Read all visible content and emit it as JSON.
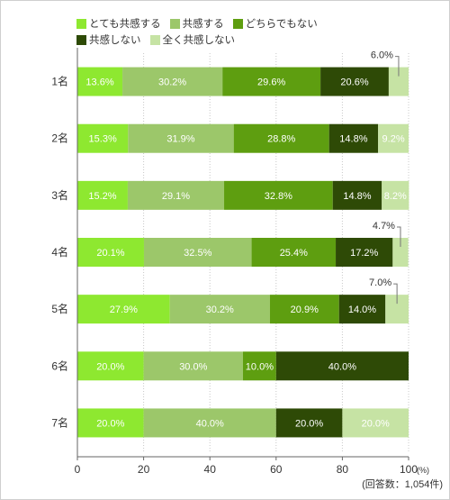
{
  "chart_data": {
    "type": "bar",
    "orientation": "horizontal",
    "stacked": true,
    "categories": [
      "1名",
      "2名",
      "3名",
      "4名",
      "5名",
      "6名",
      "7名"
    ],
    "series": [
      {
        "name": "とても共感する",
        "color": "#8ee830",
        "values": [
          13.6,
          15.3,
          15.2,
          20.1,
          27.9,
          20.0,
          20.0
        ],
        "labels": [
          "13.6%",
          "15.3%",
          "15.2%",
          "20.1%",
          "27.9%",
          "20.0%",
          "20.0%"
        ]
      },
      {
        "name": "共感する",
        "color": "#9cc76a",
        "values": [
          30.2,
          31.9,
          29.1,
          32.5,
          30.2,
          30.0,
          40.0
        ],
        "labels": [
          "30.2%",
          "31.9%",
          "29.1%",
          "32.5%",
          "30.2%",
          "30.0%",
          "40.0%"
        ]
      },
      {
        "name": "どちらでもない",
        "color": "#5e9e10",
        "values": [
          29.6,
          28.8,
          32.8,
          25.4,
          20.9,
          10.0,
          0
        ],
        "labels": [
          "29.6%",
          "28.8%",
          "32.8%",
          "25.4%",
          "20.9%",
          "10.0%",
          ""
        ]
      },
      {
        "name": "共感しない",
        "color": "#2e4a06",
        "values": [
          20.6,
          14.8,
          14.8,
          17.2,
          14.0,
          40.0,
          20.0
        ],
        "labels": [
          "20.6%",
          "14.8%",
          "14.8%",
          "17.2%",
          "14.0%",
          "40.0%",
          "20.0%"
        ]
      },
      {
        "name": "全く共感しない",
        "color": "#c6e3a4",
        "values": [
          6.0,
          9.2,
          8.2,
          4.7,
          7.0,
          0,
          20.0
        ],
        "labels": [
          "6.0%",
          "9.2%",
          "8.2%",
          "4.7%",
          "7.0%",
          "",
          "20.0%"
        ]
      }
    ],
    "xlim": [
      0,
      100
    ],
    "xticks": [
      "0",
      "20",
      "40",
      "60",
      "80",
      "100"
    ],
    "x_unit": "(%)",
    "note": "(回答数：1,054件)",
    "grid": true,
    "legend_position": "top"
  }
}
